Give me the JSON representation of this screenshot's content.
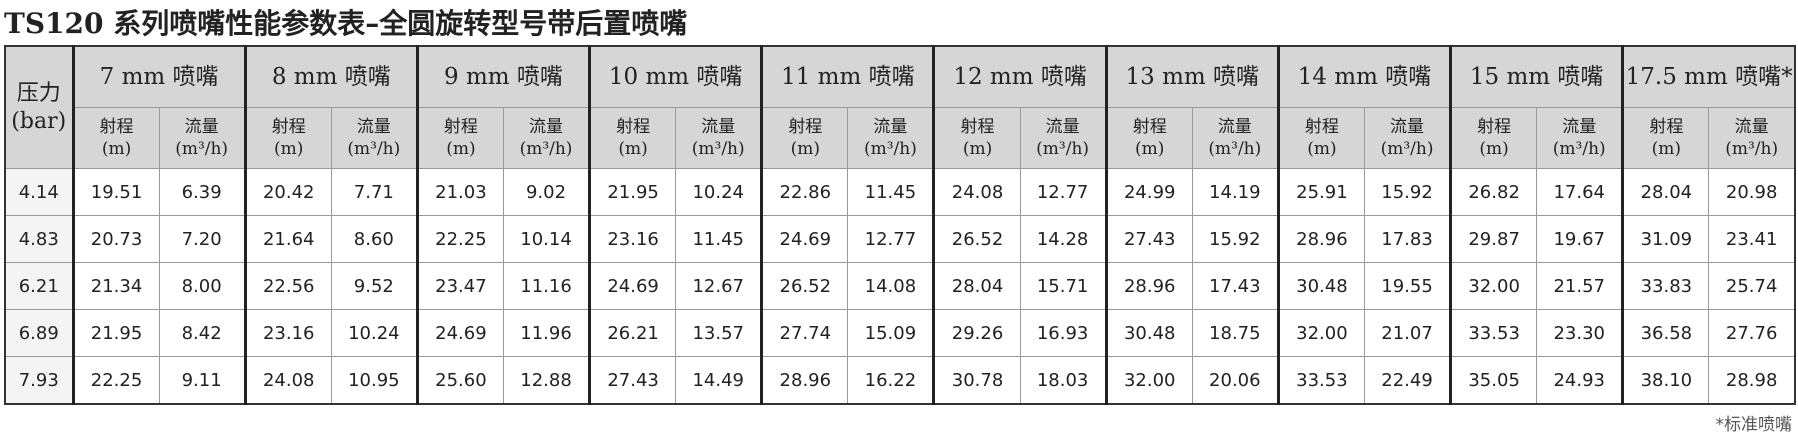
{
  "title": "TS120 系列喷嘴性能参数表–全圆旋转型号带后置喷嘴",
  "table": {
    "pressure_header": [
      "压力",
      "(bar)"
    ],
    "nozzles": [
      "7 mm 喷嘴",
      "8 mm 喷嘴",
      "9 mm 喷嘴",
      "10 mm 喷嘴",
      "11 mm 喷嘴",
      "12 mm 喷嘴",
      "13 mm 喷嘴",
      "14 mm 喷嘴",
      "15 mm 喷嘴",
      "17.5 mm 喷嘴*"
    ],
    "sub_headers": [
      [
        "射程",
        "(m)"
      ],
      [
        "流量",
        "(m³/h)"
      ]
    ],
    "rows": [
      [
        "4.14",
        "19.51",
        "6.39",
        "20.42",
        "7.71",
        "21.03",
        "9.02",
        "21.95",
        "10.24",
        "22.86",
        "11.45",
        "24.08",
        "12.77",
        "24.99",
        "14.19",
        "25.91",
        "15.92",
        "26.82",
        "17.64",
        "28.04",
        "20.98"
      ],
      [
        "4.83",
        "20.73",
        "7.20",
        "21.64",
        "8.60",
        "22.25",
        "10.14",
        "23.16",
        "11.45",
        "24.69",
        "12.77",
        "26.52",
        "14.28",
        "27.43",
        "15.92",
        "28.96",
        "17.83",
        "29.87",
        "19.67",
        "31.09",
        "23.41"
      ],
      [
        "6.21",
        "21.34",
        "8.00",
        "22.56",
        "9.52",
        "23.47",
        "11.16",
        "24.69",
        "12.67",
        "26.52",
        "14.08",
        "28.04",
        "15.71",
        "28.96",
        "17.43",
        "30.48",
        "19.55",
        "32.00",
        "21.57",
        "33.83",
        "25.74"
      ],
      [
        "6.89",
        "21.95",
        "8.42",
        "23.16",
        "10.24",
        "24.69",
        "11.96",
        "26.21",
        "13.57",
        "27.74",
        "15.09",
        "29.26",
        "16.93",
        "30.48",
        "18.75",
        "32.00",
        "21.07",
        "33.53",
        "23.30",
        "36.58",
        "27.76"
      ],
      [
        "7.93",
        "22.25",
        "9.11",
        "24.08",
        "10.95",
        "25.60",
        "12.88",
        "27.43",
        "14.49",
        "28.96",
        "16.22",
        "30.78",
        "18.03",
        "32.00",
        "20.06",
        "33.53",
        "22.49",
        "35.05",
        "24.93",
        "38.10",
        "28.98"
      ]
    ]
  },
  "footnote": "*标准喷嘴"
}
